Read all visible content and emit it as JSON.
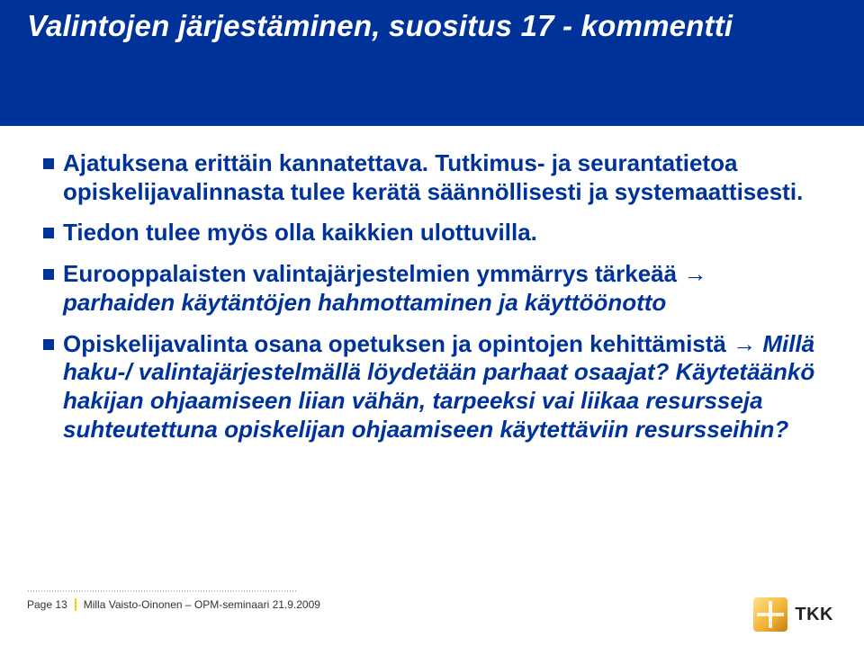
{
  "header": {
    "title": "Valintojen järjestäminen, suositus 17 - kommentti"
  },
  "bullets": [
    {
      "plain": "Ajatuksena erittäin kannatettava. Tutkimus- ja seurantatietoa opiskelijavalinnasta tulee kerätä säännöllisesti ja systemaattisesti."
    },
    {
      "plain": "Tiedon tulee myös olla kaikkien ulottuvilla."
    },
    {
      "lead": "Eurooppalaisten valintajärjestelmien ymmärrys tärkeää ",
      "arrow": "→",
      "italic": " parhaiden käytäntöjen hahmottaminen ja käyttöönotto"
    },
    {
      "lead": "Opiskelijavalinta osana opetuksen ja opintojen kehittämistä ",
      "arrow": "→",
      "italic": " Millä haku-/ valintajärjestelmällä löydetään parhaat osaajat? Käytetäänkö hakijan ohjaamiseen liian vähän, tarpeeksi vai liikaa resursseja suhteutettuna opiskelijan ohjaamiseen käytettäviin resursseihin?"
    }
  ],
  "footer": {
    "page": "Page 13",
    "author": "Milla Vaisto-Oinonen – OPM-seminaari 21.9.2009",
    "logo_text": "TKK"
  },
  "colors": {
    "brand_blue": "#003399",
    "accent_yellow": "#ffcc00",
    "background": "#ffffff"
  }
}
